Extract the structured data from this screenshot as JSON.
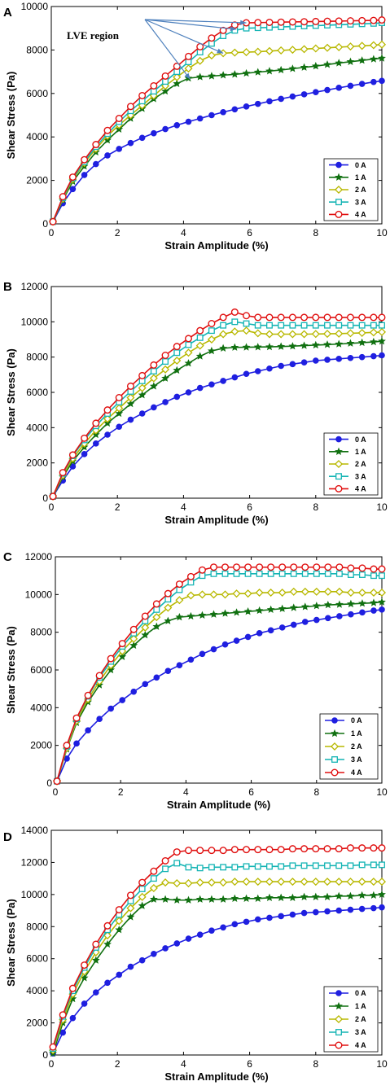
{
  "colors": {
    "0 A": "#1f1fe0",
    "1 A": "#107010",
    "2 A": "#b8b800",
    "3 A": "#14b4b4",
    "4 A": "#e01010",
    "annotation_arrow": "#4f81bd"
  },
  "chart_data": [
    {
      "type": "line",
      "panel_label": "A",
      "xlabel": "Strain Amplitude (%)",
      "ylabel": "Shear Stress (Pa)",
      "xlim": [
        0,
        10
      ],
      "ylim": [
        0,
        10000
      ],
      "xticks": [
        0,
        2,
        4,
        6,
        8,
        10
      ],
      "yticks": [
        0,
        2000,
        4000,
        6000,
        8000,
        10000
      ],
      "legend_position": "bottom-right",
      "annotation": {
        "text": "LVE region",
        "arrow_targets": [
          [
            5.9,
            9250
          ],
          [
            5.6,
            8950
          ],
          [
            5.2,
            7850
          ],
          [
            4.2,
            6650
          ]
        ]
      },
      "x": [
        0.05,
        0.35,
        0.65,
        1.0,
        1.35,
        1.7,
        2.05,
        2.4,
        2.75,
        3.1,
        3.45,
        3.8,
        4.15,
        4.5,
        4.85,
        5.2,
        5.55,
        5.9,
        6.25,
        6.6,
        6.95,
        7.3,
        7.65,
        8.0,
        8.35,
        8.7,
        9.05,
        9.4,
        9.75,
        10.0
      ],
      "series": [
        {
          "name": "0 A",
          "marker": "circle",
          "values": [
            100,
            950,
            1600,
            2250,
            2750,
            3150,
            3450,
            3720,
            3960,
            4170,
            4360,
            4540,
            4700,
            4850,
            5000,
            5140,
            5270,
            5400,
            5520,
            5640,
            5750,
            5860,
            5960,
            6060,
            6160,
            6260,
            6350,
            6440,
            6530,
            6580
          ]
        },
        {
          "name": "1 A",
          "marker": "star",
          "values": [
            100,
            1100,
            1950,
            2650,
            3300,
            3850,
            4350,
            4850,
            5300,
            5750,
            6100,
            6450,
            6700,
            6760,
            6800,
            6840,
            6880,
            6930,
            6980,
            7030,
            7080,
            7140,
            7200,
            7260,
            7330,
            7400,
            7460,
            7520,
            7580,
            7620
          ]
        },
        {
          "name": "2 A",
          "marker": "diamond",
          "values": [
            100,
            1150,
            2050,
            2800,
            3450,
            4050,
            4550,
            5000,
            5450,
            5900,
            6350,
            6750,
            7150,
            7500,
            7750,
            7850,
            7880,
            7900,
            7920,
            7950,
            7980,
            8010,
            8040,
            8070,
            8100,
            8130,
            8160,
            8190,
            8220,
            8250
          ]
        },
        {
          "name": "3 A",
          "marker": "square",
          "values": [
            100,
            1200,
            2100,
            2850,
            3550,
            4150,
            4700,
            5200,
            5650,
            6100,
            6550,
            7000,
            7450,
            7900,
            8300,
            8650,
            8900,
            9000,
            9020,
            9040,
            9060,
            9080,
            9100,
            9120,
            9140,
            9160,
            9180,
            9200,
            9220,
            9250
          ]
        },
        {
          "name": "4 A",
          "marker": "circle-open",
          "values": [
            100,
            1250,
            2150,
            2950,
            3650,
            4300,
            4850,
            5400,
            5900,
            6350,
            6800,
            7250,
            7700,
            8150,
            8550,
            8900,
            9150,
            9250,
            9260,
            9270,
            9280,
            9290,
            9300,
            9310,
            9320,
            9330,
            9340,
            9350,
            9360,
            9380
          ]
        }
      ]
    },
    {
      "type": "line",
      "panel_label": "B",
      "xlabel": "Strain Amplitude (%)",
      "ylabel": "Shear Stress (Pa)",
      "xlim": [
        0,
        10
      ],
      "ylim": [
        0,
        12000
      ],
      "xticks": [
        0,
        2,
        4,
        6,
        8,
        10
      ],
      "yticks": [
        0,
        2000,
        4000,
        6000,
        8000,
        10000,
        12000
      ],
      "legend_position": "bottom-right",
      "x": [
        0.05,
        0.35,
        0.65,
        1.0,
        1.35,
        1.7,
        2.05,
        2.4,
        2.75,
        3.1,
        3.45,
        3.8,
        4.15,
        4.5,
        4.85,
        5.2,
        5.55,
        5.9,
        6.25,
        6.6,
        6.95,
        7.3,
        7.65,
        8.0,
        8.35,
        8.7,
        9.05,
        9.4,
        9.75,
        10.0
      ],
      "series": [
        {
          "name": "0 A",
          "marker": "circle",
          "values": [
            100,
            1000,
            1800,
            2500,
            3100,
            3600,
            4050,
            4450,
            4800,
            5150,
            5450,
            5750,
            6000,
            6250,
            6450,
            6650,
            6850,
            7050,
            7200,
            7350,
            7500,
            7600,
            7700,
            7800,
            7850,
            7900,
            7950,
            8000,
            8050,
            8100
          ]
        },
        {
          "name": "1 A",
          "marker": "star",
          "values": [
            100,
            1200,
            2100,
            2900,
            3600,
            4250,
            4800,
            5350,
            5850,
            6350,
            6800,
            7250,
            7650,
            8050,
            8350,
            8500,
            8550,
            8560,
            8570,
            8580,
            8600,
            8620,
            8650,
            8680,
            8710,
            8740,
            8780,
            8820,
            8860,
            8900
          ]
        },
        {
          "name": "2 A",
          "marker": "diamond",
          "values": [
            100,
            1300,
            2250,
            3100,
            3850,
            4500,
            5100,
            5700,
            6250,
            6800,
            7300,
            7800,
            8250,
            8650,
            9000,
            9300,
            9450,
            9500,
            9350,
            9300,
            9300,
            9300,
            9300,
            9310,
            9320,
            9330,
            9350,
            9370,
            9400,
            9420
          ]
        },
        {
          "name": "3 A",
          "marker": "square",
          "values": [
            100,
            1400,
            2400,
            3300,
            4100,
            4800,
            5450,
            6050,
            6650,
            7200,
            7750,
            8250,
            8700,
            9100,
            9500,
            9800,
            10000,
            9900,
            9800,
            9800,
            9800,
            9800,
            9800,
            9800,
            9800,
            9800,
            9800,
            9800,
            9800,
            9800
          ]
        },
        {
          "name": "4 A",
          "marker": "circle-open",
          "values": [
            100,
            1450,
            2450,
            3400,
            4250,
            5000,
            5700,
            6350,
            6950,
            7550,
            8100,
            8600,
            9050,
            9500,
            9900,
            10250,
            10550,
            10350,
            10250,
            10250,
            10250,
            10250,
            10250,
            10250,
            10250,
            10250,
            10250,
            10250,
            10250,
            10250
          ]
        }
      ]
    },
    {
      "type": "line",
      "panel_label": "C",
      "xlabel": "Strain Amplitude (%)",
      "ylabel": "Shear Stress (Pa)",
      "xlim": [
        0,
        10
      ],
      "ylim": [
        0,
        12000
      ],
      "xticks": [
        0,
        2,
        4,
        6,
        8,
        10
      ],
      "yticks": [
        0,
        2000,
        4000,
        6000,
        8000,
        10000,
        12000
      ],
      "legend_position": "bottom-right",
      "x": [
        0.05,
        0.35,
        0.65,
        1.0,
        1.35,
        1.7,
        2.05,
        2.4,
        2.75,
        3.1,
        3.45,
        3.8,
        4.15,
        4.5,
        4.85,
        5.2,
        5.55,
        5.9,
        6.25,
        6.6,
        6.95,
        7.3,
        7.65,
        8.0,
        8.35,
        8.7,
        9.05,
        9.4,
        9.75,
        10.0
      ],
      "series": [
        {
          "name": "0 A",
          "marker": "circle",
          "values": [
            100,
            1300,
            2100,
            2800,
            3400,
            3950,
            4400,
            4850,
            5250,
            5600,
            5950,
            6250,
            6550,
            6850,
            7100,
            7350,
            7550,
            7750,
            7950,
            8100,
            8250,
            8400,
            8550,
            8650,
            8750,
            8850,
            8950,
            9050,
            9150,
            9200
          ]
        },
        {
          "name": "1 A",
          "marker": "star",
          "values": [
            100,
            1800,
            3200,
            4300,
            5200,
            6000,
            6700,
            7300,
            7850,
            8300,
            8600,
            8800,
            8850,
            8900,
            8950,
            9000,
            9050,
            9100,
            9150,
            9200,
            9250,
            9300,
            9350,
            9400,
            9450,
            9470,
            9500,
            9530,
            9560,
            9600
          ]
        },
        {
          "name": "2 A",
          "marker": "diamond",
          "values": [
            100,
            1850,
            3300,
            4450,
            5400,
            6250,
            7000,
            7650,
            8250,
            8800,
            9300,
            9700,
            9950,
            10000,
            10000,
            10000,
            10050,
            10050,
            10100,
            10100,
            10100,
            10150,
            10150,
            10150,
            10150,
            10150,
            10100,
            10100,
            10100,
            10100
          ]
        },
        {
          "name": "3 A",
          "marker": "square",
          "values": [
            100,
            1950,
            3400,
            4600,
            5600,
            6450,
            7250,
            7950,
            8600,
            9200,
            9750,
            10250,
            10650,
            11000,
            11100,
            11100,
            11100,
            11100,
            11100,
            11100,
            11100,
            11100,
            11100,
            11100,
            11100,
            11100,
            11050,
            11050,
            11000,
            11000
          ]
        },
        {
          "name": "4 A",
          "marker": "circle-open",
          "values": [
            100,
            2000,
            3450,
            4650,
            5700,
            6600,
            7400,
            8150,
            8850,
            9500,
            10050,
            10550,
            10950,
            11300,
            11450,
            11450,
            11450,
            11450,
            11450,
            11450,
            11450,
            11450,
            11450,
            11450,
            11450,
            11450,
            11400,
            11400,
            11350,
            11350
          ]
        }
      ]
    },
    {
      "type": "line",
      "panel_label": "D",
      "xlabel": "Strain Amplitude (%)",
      "ylabel": "Shear Stress (Pa)",
      "xlim": [
        0,
        10
      ],
      "ylim": [
        0,
        14000
      ],
      "xticks": [
        0,
        2,
        4,
        6,
        8,
        10
      ],
      "yticks": [
        0,
        2000,
        4000,
        6000,
        8000,
        10000,
        12000,
        14000
      ],
      "legend_position": "bottom-right",
      "x": [
        0.05,
        0.35,
        0.65,
        1.0,
        1.35,
        1.7,
        2.05,
        2.4,
        2.75,
        3.1,
        3.45,
        3.8,
        4.15,
        4.5,
        4.85,
        5.2,
        5.55,
        5.9,
        6.25,
        6.6,
        6.95,
        7.3,
        7.65,
        8.0,
        8.35,
        8.7,
        9.05,
        9.4,
        9.75,
        10.0
      ],
      "series": [
        {
          "name": "0 A",
          "marker": "circle",
          "values": [
            100,
            1400,
            2300,
            3200,
            3900,
            4500,
            5000,
            5500,
            5900,
            6300,
            6650,
            6950,
            7250,
            7500,
            7750,
            7950,
            8150,
            8300,
            8450,
            8550,
            8650,
            8750,
            8850,
            8900,
            8950,
            9000,
            9050,
            9100,
            9150,
            9200
          ]
        },
        {
          "name": "1 A",
          "marker": "star",
          "values": [
            100,
            2000,
            3500,
            4800,
            5900,
            6900,
            7800,
            8600,
            9300,
            9700,
            9700,
            9650,
            9650,
            9700,
            9700,
            9700,
            9750,
            9750,
            9750,
            9800,
            9800,
            9800,
            9850,
            9850,
            9850,
            9900,
            9900,
            9950,
            9950,
            10000
          ]
        },
        {
          "name": "2 A",
          "marker": "diamond",
          "values": [
            300,
            2200,
            3800,
            5200,
            6400,
            7450,
            8350,
            9150,
            9850,
            10400,
            10750,
            10700,
            10700,
            10750,
            10750,
            10750,
            10800,
            10800,
            10800,
            10800,
            10800,
            10800,
            10800,
            10800,
            10800,
            10800,
            10800,
            10800,
            10800,
            10800
          ]
        },
        {
          "name": "3 A",
          "marker": "square",
          "values": [
            400,
            2400,
            4000,
            5450,
            6700,
            7800,
            8750,
            9600,
            10350,
            11000,
            11600,
            11950,
            11700,
            11650,
            11700,
            11700,
            11700,
            11750,
            11750,
            11750,
            11750,
            11800,
            11800,
            11800,
            11800,
            11800,
            11800,
            11850,
            11850,
            11850
          ]
        },
        {
          "name": "4 A",
          "marker": "circle-open",
          "values": [
            500,
            2500,
            4150,
            5600,
            6900,
            8050,
            9050,
            9950,
            10750,
            11450,
            12100,
            12650,
            12750,
            12750,
            12750,
            12750,
            12800,
            12800,
            12800,
            12800,
            12800,
            12850,
            12850,
            12850,
            12850,
            12850,
            12900,
            12900,
            12900,
            12900
          ]
        }
      ]
    }
  ]
}
